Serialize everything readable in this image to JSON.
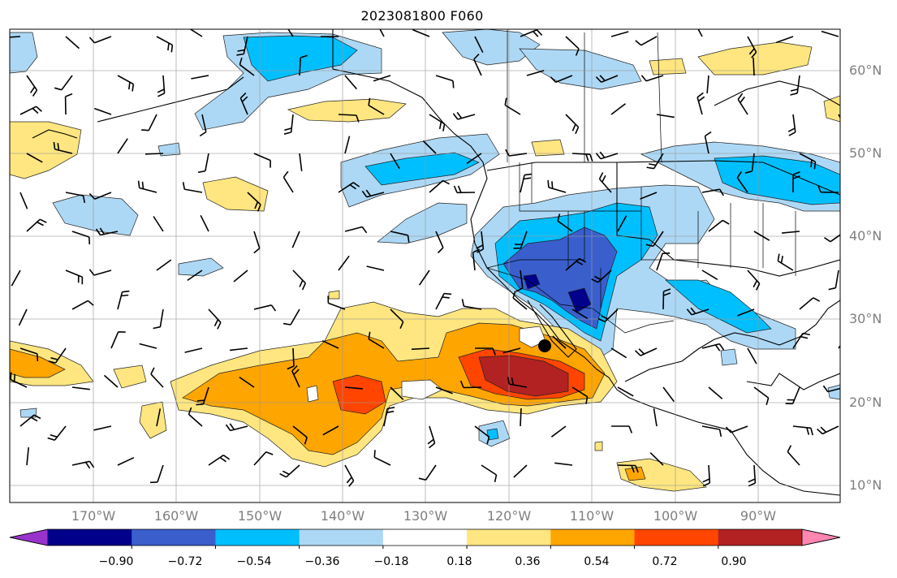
{
  "title": "2023081800 F060",
  "map": {
    "projection": "PlateCarree",
    "lon_range": [
      -180,
      -80
    ],
    "lat_range": [
      7,
      64
    ],
    "lat_labels": [
      "60°N",
      "50°N",
      "40°N",
      "30°N",
      "20°N",
      "10°N"
    ],
    "lon_labels": [
      "170°W",
      "160°W",
      "150°W",
      "140°W",
      "130°W",
      "120°W",
      "110°W",
      "100°W",
      "90°W"
    ],
    "marker": {
      "name": "storm-center-marker",
      "lon": -115.8,
      "lat": 26.5
    }
  },
  "colorbar": {
    "ticks": [
      "−0.90",
      "−0.72",
      "−0.54",
      "−0.36",
      "−0.18",
      "0.18",
      "0.36",
      "0.54",
      "0.72",
      "0.90"
    ],
    "colors": [
      "#9932cc",
      "#00008b",
      "#3a5fcd",
      "#00bfff",
      "#add8f5",
      "#ffffff",
      "#ffe680",
      "#ffa500",
      "#ff4500",
      "#b22222",
      "#ff86b0"
    ]
  }
}
